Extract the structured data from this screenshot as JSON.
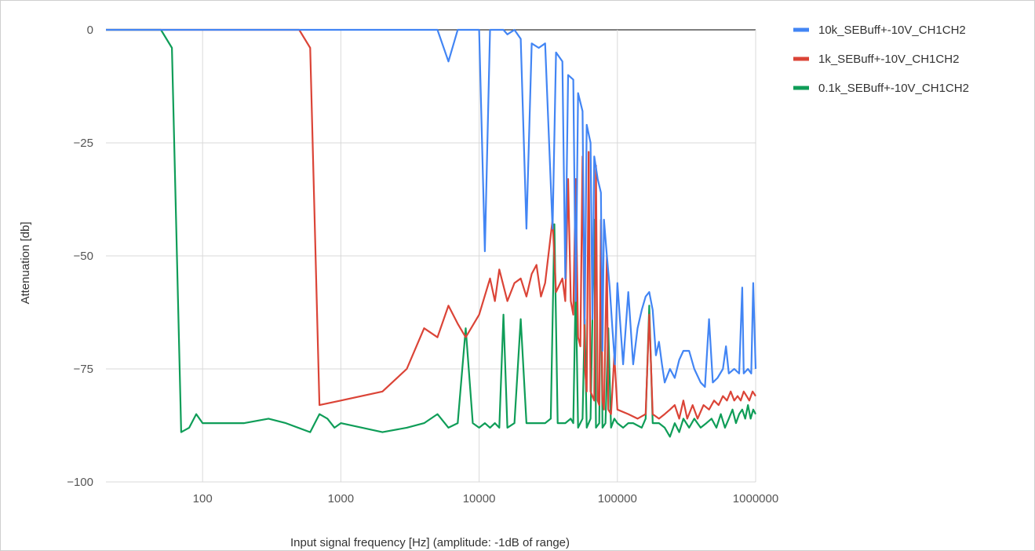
{
  "chart_data": {
    "type": "line",
    "title": "",
    "xlabel": "Input signal frequency [Hz] (amplitude: -1dB of range)",
    "ylabel": "Attenuation [db]",
    "xscale": "log",
    "xlim": [
      20,
      1000000
    ],
    "ylim": [
      -100,
      0
    ],
    "x_ticks": [
      100,
      1000,
      10000,
      100000,
      1000000
    ],
    "x_tick_labels": [
      "100",
      "1000",
      "10000",
      "100000",
      "1000000"
    ],
    "y_ticks": [
      0,
      -25,
      -50,
      -75,
      -100
    ],
    "y_tick_labels": [
      "0",
      "−25",
      "−50",
      "−75",
      "−100"
    ],
    "grid": true,
    "legend_position": "right",
    "series": [
      {
        "name": "10k_SEBuff+-10V_CH1CH2",
        "color": "#4285f4",
        "points": [
          [
            20,
            0
          ],
          [
            1000,
            0
          ],
          [
            5000,
            0
          ],
          [
            6000,
            -7
          ],
          [
            7000,
            0
          ],
          [
            10000,
            0
          ],
          [
            11000,
            -49
          ],
          [
            12000,
            0
          ],
          [
            15000,
            0
          ],
          [
            16000,
            -1
          ],
          [
            18000,
            0
          ],
          [
            20000,
            -2
          ],
          [
            22000,
            -44
          ],
          [
            24000,
            -3
          ],
          [
            27000,
            -4
          ],
          [
            30000,
            -3
          ],
          [
            34000,
            -44
          ],
          [
            36000,
            -5
          ],
          [
            40000,
            -7
          ],
          [
            42000,
            -55
          ],
          [
            44000,
            -10
          ],
          [
            48000,
            -11
          ],
          [
            50000,
            -60
          ],
          [
            52000,
            -14
          ],
          [
            56000,
            -18
          ],
          [
            58000,
            -65
          ],
          [
            60000,
            -21
          ],
          [
            64000,
            -25
          ],
          [
            66000,
            -64
          ],
          [
            68000,
            -28
          ],
          [
            72000,
            -33
          ],
          [
            76000,
            -36
          ],
          [
            78000,
            -71
          ],
          [
            80000,
            -42
          ],
          [
            84000,
            -50
          ],
          [
            88000,
            -57
          ],
          [
            92000,
            -66
          ],
          [
            96000,
            -74
          ],
          [
            100000,
            -56
          ],
          [
            110000,
            -74
          ],
          [
            120000,
            -58
          ],
          [
            130000,
            -74
          ],
          [
            140000,
            -66
          ],
          [
            150000,
            -62
          ],
          [
            160000,
            -59
          ],
          [
            170000,
            -58
          ],
          [
            180000,
            -62
          ],
          [
            190000,
            -72
          ],
          [
            200000,
            -69
          ],
          [
            210000,
            -74
          ],
          [
            220000,
            -78
          ],
          [
            240000,
            -75
          ],
          [
            260000,
            -77
          ],
          [
            280000,
            -73
          ],
          [
            300000,
            -71
          ],
          [
            330000,
            -71
          ],
          [
            360000,
            -75
          ],
          [
            400000,
            -78
          ],
          [
            430000,
            -79
          ],
          [
            460000,
            -64
          ],
          [
            490000,
            -78
          ],
          [
            530000,
            -77
          ],
          [
            580000,
            -75
          ],
          [
            610000,
            -70
          ],
          [
            640000,
            -76
          ],
          [
            700000,
            -75
          ],
          [
            760000,
            -76
          ],
          [
            800000,
            -57
          ],
          [
            820000,
            -76
          ],
          [
            880000,
            -75
          ],
          [
            930000,
            -76
          ],
          [
            960000,
            -56
          ],
          [
            1000000,
            -75
          ]
        ]
      },
      {
        "name": "1k_SEBuff+-10V_CH1CH2",
        "color": "#db4437",
        "points": [
          [
            20,
            0
          ],
          [
            500,
            0
          ],
          [
            600,
            -4
          ],
          [
            700,
            -83
          ],
          [
            1000,
            -82
          ],
          [
            2000,
            -80
          ],
          [
            3000,
            -75
          ],
          [
            4000,
            -66
          ],
          [
            5000,
            -68
          ],
          [
            6000,
            -61
          ],
          [
            7000,
            -65
          ],
          [
            8000,
            -68
          ],
          [
            10000,
            -63
          ],
          [
            12000,
            -55
          ],
          [
            13000,
            -60
          ],
          [
            14000,
            -53
          ],
          [
            16000,
            -60
          ],
          [
            18000,
            -56
          ],
          [
            20000,
            -55
          ],
          [
            22000,
            -59
          ],
          [
            24000,
            -54
          ],
          [
            26000,
            -52
          ],
          [
            28000,
            -59
          ],
          [
            30000,
            -56
          ],
          [
            34000,
            -42
          ],
          [
            36000,
            -58
          ],
          [
            40000,
            -55
          ],
          [
            42000,
            -60
          ],
          [
            44000,
            -33
          ],
          [
            46000,
            -60
          ],
          [
            48000,
            -63
          ],
          [
            50000,
            -33
          ],
          [
            52000,
            -68
          ],
          [
            54000,
            -70
          ],
          [
            56000,
            -28
          ],
          [
            58000,
            -74
          ],
          [
            60000,
            -80
          ],
          [
            62000,
            -27
          ],
          [
            64000,
            -80
          ],
          [
            68000,
            -82
          ],
          [
            70000,
            -30
          ],
          [
            72000,
            -82
          ],
          [
            74000,
            -83
          ],
          [
            76000,
            -42
          ],
          [
            78000,
            -82
          ],
          [
            80000,
            -84
          ],
          [
            84000,
            -50
          ],
          [
            86000,
            -84
          ],
          [
            90000,
            -85
          ],
          [
            95000,
            -72
          ],
          [
            100000,
            -84
          ],
          [
            120000,
            -85
          ],
          [
            140000,
            -86
          ],
          [
            160000,
            -85
          ],
          [
            170000,
            -63
          ],
          [
            180000,
            -85
          ],
          [
            200000,
            -86
          ],
          [
            220000,
            -85
          ],
          [
            240000,
            -84
          ],
          [
            260000,
            -83
          ],
          [
            280000,
            -86
          ],
          [
            300000,
            -82
          ],
          [
            320000,
            -86
          ],
          [
            350000,
            -83
          ],
          [
            380000,
            -86
          ],
          [
            420000,
            -83
          ],
          [
            460000,
            -84
          ],
          [
            500000,
            -82
          ],
          [
            540000,
            -83
          ],
          [
            580000,
            -81
          ],
          [
            620000,
            -82
          ],
          [
            660000,
            -80
          ],
          [
            700000,
            -82
          ],
          [
            740000,
            -81
          ],
          [
            780000,
            -82
          ],
          [
            820000,
            -80
          ],
          [
            860000,
            -81
          ],
          [
            900000,
            -82
          ],
          [
            950000,
            -80
          ],
          [
            1000000,
            -81
          ]
        ]
      },
      {
        "name": "0.1k_SEBuff+-10V_CH1CH2",
        "color": "#0f9d58",
        "points": [
          [
            20,
            0
          ],
          [
            50,
            0
          ],
          [
            60,
            -4
          ],
          [
            70,
            -89
          ],
          [
            80,
            -88
          ],
          [
            90,
            -85
          ],
          [
            100,
            -87
          ],
          [
            200,
            -87
          ],
          [
            300,
            -86
          ],
          [
            400,
            -87
          ],
          [
            600,
            -89
          ],
          [
            700,
            -85
          ],
          [
            800,
            -86
          ],
          [
            900,
            -88
          ],
          [
            1000,
            -87
          ],
          [
            2000,
            -89
          ],
          [
            3000,
            -88
          ],
          [
            4000,
            -87
          ],
          [
            5000,
            -85
          ],
          [
            6000,
            -88
          ],
          [
            7000,
            -87
          ],
          [
            8000,
            -66
          ],
          [
            9000,
            -87
          ],
          [
            10000,
            -88
          ],
          [
            11000,
            -87
          ],
          [
            12000,
            -88
          ],
          [
            13000,
            -87
          ],
          [
            14000,
            -88
          ],
          [
            15000,
            -63
          ],
          [
            16000,
            -88
          ],
          [
            18000,
            -87
          ],
          [
            20000,
            -64
          ],
          [
            22000,
            -87
          ],
          [
            26000,
            -87
          ],
          [
            30000,
            -87
          ],
          [
            33000,
            -86
          ],
          [
            35000,
            -43
          ],
          [
            37000,
            -87
          ],
          [
            42000,
            -87
          ],
          [
            46000,
            -86
          ],
          [
            48000,
            -87
          ],
          [
            50000,
            -56
          ],
          [
            52000,
            -88
          ],
          [
            56000,
            -86
          ],
          [
            58000,
            -64
          ],
          [
            60000,
            -88
          ],
          [
            64000,
            -86
          ],
          [
            68000,
            -42
          ],
          [
            70000,
            -88
          ],
          [
            74000,
            -87
          ],
          [
            76000,
            -50
          ],
          [
            78000,
            -88
          ],
          [
            82000,
            -87
          ],
          [
            86000,
            -66
          ],
          [
            90000,
            -88
          ],
          [
            95000,
            -86
          ],
          [
            100000,
            -87
          ],
          [
            110000,
            -88
          ],
          [
            120000,
            -87
          ],
          [
            130000,
            -87
          ],
          [
            150000,
            -88
          ],
          [
            160000,
            -86
          ],
          [
            170000,
            -61
          ],
          [
            180000,
            -87
          ],
          [
            200000,
            -87
          ],
          [
            220000,
            -88
          ],
          [
            240000,
            -90
          ],
          [
            260000,
            -87
          ],
          [
            280000,
            -89
          ],
          [
            300000,
            -86
          ],
          [
            330000,
            -88
          ],
          [
            360000,
            -86
          ],
          [
            400000,
            -88
          ],
          [
            440000,
            -87
          ],
          [
            480000,
            -86
          ],
          [
            520000,
            -88
          ],
          [
            560000,
            -85
          ],
          [
            600000,
            -88
          ],
          [
            640000,
            -86
          ],
          [
            680000,
            -84
          ],
          [
            720000,
            -87
          ],
          [
            760000,
            -85
          ],
          [
            800000,
            -84
          ],
          [
            840000,
            -86
          ],
          [
            880000,
            -83
          ],
          [
            920000,
            -86
          ],
          [
            960000,
            -84
          ],
          [
            1000000,
            -85
          ]
        ]
      }
    ]
  }
}
